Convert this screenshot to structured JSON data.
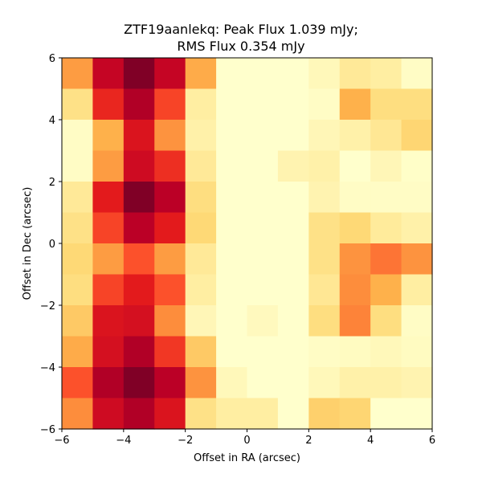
{
  "chart_data": {
    "type": "heatmap",
    "title_line1": "ZTF19aanlekq: Peak Flux 1.039 mJy;",
    "title_line2": "RMS Flux 0.354 mJy",
    "xlabel": "Offset in RA (arcsec)",
    "ylabel": "Offset in Dec (arcsec)",
    "xlim": [
      -6,
      6
    ],
    "ylim": [
      -6,
      6
    ],
    "xticks": [
      -6,
      -4,
      -2,
      0,
      2,
      4,
      6
    ],
    "yticks": [
      -6,
      -4,
      -2,
      0,
      2,
      4,
      6
    ],
    "xtick_labels": [
      "−6",
      "−4",
      "−2",
      "0",
      "2",
      "4",
      "6"
    ],
    "ytick_labels": [
      "−6",
      "−4",
      "−2",
      "0",
      "2",
      "4",
      "6"
    ],
    "colormap": "YlOrRd",
    "grid": false,
    "rows_top_to_bottom": [
      [
        0.45,
        0.85,
        1.0,
        0.85,
        0.4,
        0.0,
        0.0,
        0.0,
        0.05,
        0.15,
        0.12,
        0.02
      ],
      [
        0.2,
        0.72,
        0.9,
        0.65,
        0.12,
        0.0,
        0.0,
        0.0,
        0.02,
        0.38,
        0.22,
        0.22
      ],
      [
        0.02,
        0.38,
        0.78,
        0.48,
        0.1,
        0.0,
        0.0,
        0.0,
        0.06,
        0.1,
        0.16,
        0.26
      ],
      [
        0.02,
        0.45,
        0.82,
        0.7,
        0.15,
        0.0,
        0.0,
        0.08,
        0.1,
        0.0,
        0.06,
        0.01
      ],
      [
        0.15,
        0.75,
        1.0,
        0.88,
        0.22,
        0.0,
        0.0,
        0.0,
        0.08,
        0.02,
        0.02,
        0.02
      ],
      [
        0.2,
        0.65,
        0.88,
        0.75,
        0.25,
        0.0,
        0.0,
        0.0,
        0.2,
        0.25,
        0.14,
        0.1
      ],
      [
        0.25,
        0.45,
        0.62,
        0.45,
        0.15,
        0.0,
        0.0,
        0.0,
        0.2,
        0.48,
        0.55,
        0.48
      ],
      [
        0.22,
        0.65,
        0.75,
        0.62,
        0.12,
        0.0,
        0.0,
        0.0,
        0.16,
        0.5,
        0.38,
        0.12
      ],
      [
        0.3,
        0.78,
        0.8,
        0.5,
        0.06,
        0.0,
        0.04,
        0.0,
        0.22,
        0.52,
        0.22,
        0.02
      ],
      [
        0.4,
        0.8,
        0.9,
        0.68,
        0.3,
        0.0,
        0.0,
        0.0,
        0.02,
        0.03,
        0.05,
        0.03
      ],
      [
        0.62,
        0.9,
        1.0,
        0.88,
        0.48,
        0.05,
        0.0,
        0.0,
        0.05,
        0.1,
        0.1,
        0.08
      ],
      [
        0.5,
        0.82,
        0.9,
        0.78,
        0.2,
        0.12,
        0.12,
        0.0,
        0.28,
        0.26,
        0.0,
        0.0
      ]
    ]
  }
}
